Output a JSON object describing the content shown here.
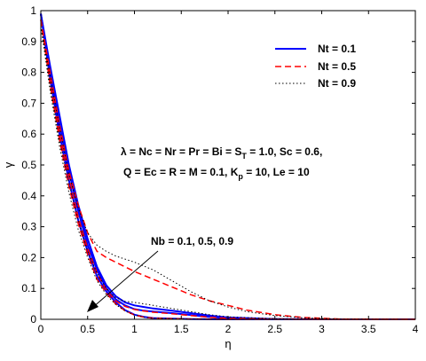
{
  "chart_data": {
    "type": "line",
    "title": "",
    "xlabel": "η",
    "ylabel": "γ",
    "xlim": [
      0,
      4
    ],
    "ylim": [
      0,
      1
    ],
    "x_ticks": [
      "0",
      "0.5",
      "1",
      "1.5",
      "2",
      "2.5",
      "3",
      "3.5",
      "4"
    ],
    "y_ticks": [
      "0",
      "0.1",
      "0.2",
      "0.3",
      "0.4",
      "0.5",
      "0.6",
      "0.7",
      "0.8",
      "0.9",
      "1"
    ],
    "grid": false,
    "legend_position": "top-right",
    "legend": [
      {
        "label": "Nt = 0.1",
        "color": "#0000ff",
        "style": "solid"
      },
      {
        "label": "Nt = 0.5",
        "color": "#ff0000",
        "style": "dashed"
      },
      {
        "label": "Nt = 0.9",
        "color": "#000000",
        "style": "dotted"
      }
    ],
    "annotations": {
      "params_line1": "λ = Nc = Nr = Pr = Bi = S",
      "params_line1_sub": "T",
      "params_line1_tail": " = 1.0, Sc = 0.6,",
      "params_line2": "Q = Ec = R = M = 0.1, K",
      "params_line2_sub": "p",
      "params_line2_tail": " = 10, Le = 10",
      "nb_label": "Nb = 0.1, 0.5, 0.9"
    },
    "series": [
      {
        "nt": "0.1",
        "nb": "0.1",
        "color": "#0000ff",
        "style": "solid",
        "x": [
          0,
          0.1,
          0.2,
          0.3,
          0.4,
          0.5,
          0.6,
          0.7,
          0.8,
          0.9,
          1.0,
          1.1,
          1.2,
          1.4,
          1.6,
          2.0,
          2.5,
          3.0,
          4.0
        ],
        "y": [
          0.99,
          0.78,
          0.6,
          0.45,
          0.32,
          0.22,
          0.14,
          0.09,
          0.055,
          0.03,
          0.015,
          0.008,
          0.004,
          0.002,
          0.001,
          0,
          0,
          0,
          0
        ]
      },
      {
        "nt": "0.1",
        "nb": "0.5",
        "color": "#0000ff",
        "style": "solid",
        "x": [
          0,
          0.1,
          0.2,
          0.3,
          0.4,
          0.5,
          0.6,
          0.7,
          0.8,
          0.9,
          1.0,
          1.1,
          1.2,
          1.4,
          1.6,
          1.8,
          2.0,
          2.5,
          3.0,
          4.0
        ],
        "y": [
          0.99,
          0.8,
          0.63,
          0.48,
          0.35,
          0.24,
          0.16,
          0.1,
          0.065,
          0.045,
          0.033,
          0.028,
          0.025,
          0.02,
          0.014,
          0.008,
          0.004,
          0.001,
          0,
          0
        ]
      },
      {
        "nt": "0.1",
        "nb": "0.9",
        "color": "#0000ff",
        "style": "solid",
        "x": [
          0,
          0.1,
          0.2,
          0.3,
          0.4,
          0.5,
          0.6,
          0.7,
          0.8,
          0.9,
          1.0,
          1.1,
          1.2,
          1.4,
          1.6,
          1.8,
          2.0,
          2.5,
          3.0,
          4.0
        ],
        "y": [
          0.99,
          0.82,
          0.66,
          0.5,
          0.37,
          0.26,
          0.17,
          0.11,
          0.075,
          0.055,
          0.045,
          0.04,
          0.035,
          0.028,
          0.02,
          0.012,
          0.006,
          0.001,
          0,
          0
        ]
      },
      {
        "nt": "0.5",
        "nb": "0.1",
        "color": "#ff0000",
        "style": "dashed",
        "x": [
          0,
          0.1,
          0.2,
          0.3,
          0.4,
          0.5,
          0.6,
          0.7,
          0.8,
          0.9,
          1.0,
          1.1,
          1.2,
          1.4,
          1.6,
          2.0,
          2.5,
          3.0,
          4.0
        ],
        "y": [
          0.97,
          0.76,
          0.58,
          0.43,
          0.31,
          0.21,
          0.13,
          0.085,
          0.05,
          0.028,
          0.014,
          0.007,
          0.004,
          0.002,
          0.001,
          0,
          0,
          0,
          0
        ]
      },
      {
        "nt": "0.5",
        "nb": "0.5",
        "color": "#ff0000",
        "style": "dashed",
        "x": [
          0,
          0.1,
          0.2,
          0.3,
          0.4,
          0.5,
          0.6,
          0.7,
          0.8,
          0.9,
          1.0,
          1.1,
          1.2,
          1.4,
          1.6,
          1.8,
          2.0,
          2.5,
          3.0,
          4.0
        ],
        "y": [
          0.97,
          0.77,
          0.6,
          0.46,
          0.33,
          0.23,
          0.15,
          0.095,
          0.06,
          0.042,
          0.032,
          0.027,
          0.023,
          0.018,
          0.012,
          0.007,
          0.003,
          0.001,
          0,
          0
        ]
      },
      {
        "nt": "0.5",
        "nb": "0.9",
        "color": "#ff0000",
        "style": "dashed",
        "x": [
          0,
          0.1,
          0.2,
          0.3,
          0.4,
          0.5,
          0.6,
          0.7,
          0.8,
          0.9,
          1.0,
          1.2,
          1.4,
          1.6,
          1.8,
          2.0,
          2.2,
          2.5,
          2.8,
          3.2,
          4.0
        ],
        "y": [
          0.97,
          0.8,
          0.63,
          0.48,
          0.37,
          0.28,
          0.22,
          0.2,
          0.185,
          0.17,
          0.155,
          0.13,
          0.105,
          0.08,
          0.06,
          0.045,
          0.03,
          0.015,
          0.006,
          0.001,
          0
        ]
      },
      {
        "nt": "0.9",
        "nb": "0.1",
        "color": "#000000",
        "style": "dotted",
        "x": [
          0,
          0.1,
          0.2,
          0.3,
          0.4,
          0.5,
          0.6,
          0.7,
          0.8,
          0.9,
          1.0,
          1.1,
          1.2,
          1.4,
          1.6,
          2.0,
          2.5,
          3.0,
          4.0
        ],
        "y": [
          0.95,
          0.74,
          0.56,
          0.41,
          0.29,
          0.2,
          0.125,
          0.08,
          0.048,
          0.027,
          0.014,
          0.007,
          0.004,
          0.002,
          0.001,
          0,
          0,
          0,
          0
        ]
      },
      {
        "nt": "0.9",
        "nb": "0.5",
        "color": "#000000",
        "style": "dotted",
        "x": [
          0,
          0.1,
          0.2,
          0.3,
          0.4,
          0.5,
          0.6,
          0.7,
          0.8,
          0.9,
          1.0,
          1.1,
          1.2,
          1.4,
          1.6,
          1.8,
          2.0,
          2.5,
          3.0,
          4.0
        ],
        "y": [
          0.95,
          0.76,
          0.58,
          0.44,
          0.32,
          0.22,
          0.15,
          0.1,
          0.07,
          0.058,
          0.055,
          0.05,
          0.045,
          0.035,
          0.025,
          0.015,
          0.008,
          0.002,
          0,
          0
        ]
      },
      {
        "nt": "0.9",
        "nb": "0.9",
        "color": "#000000",
        "style": "dotted",
        "x": [
          0,
          0.1,
          0.2,
          0.3,
          0.4,
          0.5,
          0.6,
          0.7,
          0.8,
          0.9,
          1.0,
          1.2,
          1.4,
          1.6,
          1.8,
          2.0,
          2.2,
          2.5,
          2.8,
          3.2,
          4.0
        ],
        "y": [
          0.95,
          0.79,
          0.62,
          0.47,
          0.36,
          0.28,
          0.24,
          0.22,
          0.205,
          0.195,
          0.185,
          0.16,
          0.125,
          0.09,
          0.06,
          0.04,
          0.025,
          0.012,
          0.005,
          0.001,
          0
        ]
      }
    ]
  }
}
